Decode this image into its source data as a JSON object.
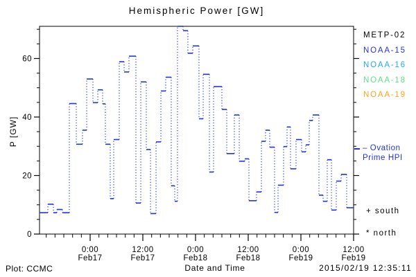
{
  "chart_data": {
    "type": "line",
    "subtype": "step-line",
    "title": "Hemispheric Power [GW]",
    "xlabel": "Date and Time",
    "ylabel": "P [GW]",
    "ylim": [
      0,
      71
    ],
    "grid": false,
    "y_major_ticks": [
      {
        "v": 0,
        "label": "0"
      },
      {
        "v": 20,
        "label": "20"
      },
      {
        "v": 40,
        "label": "40"
      },
      {
        "v": 60,
        "label": "60"
      }
    ],
    "y_minor_step": 5,
    "x_unit": "hours since 2015-02-16 00:00",
    "x_range_hours": [
      12.47,
      84
    ],
    "x_minor_step_hours": 2,
    "x_major_ticks": [
      {
        "h": 24,
        "line1": "0:00",
        "line2": "Feb17"
      },
      {
        "h": 36,
        "line1": "12:00",
        "line2": "Feb17"
      },
      {
        "h": 48,
        "line1": "0:00",
        "line2": "Feb18"
      },
      {
        "h": 60,
        "line1": "12:00",
        "line2": "Feb18"
      },
      {
        "h": 72,
        "line1": "0:00",
        "line2": "Feb19"
      },
      {
        "h": 84,
        "line1": "12:00",
        "line2": "Feb19"
      }
    ],
    "series": [
      {
        "name": "Ovation Prime HPI",
        "color": "#2233dd",
        "line_style": "solid horizontal steps with dotted vertical connectors",
        "segments_t0_t1_gw": [
          [
            12.47,
            14.37,
            7.3
          ],
          [
            14.37,
            15.63,
            10.2
          ],
          [
            15.63,
            16.42,
            7.3
          ],
          [
            16.42,
            17.68,
            8.4
          ],
          [
            17.68,
            19.26,
            7.3
          ],
          [
            19.26,
            20.84,
            44.6
          ],
          [
            20.84,
            22.26,
            30.7
          ],
          [
            22.26,
            23.21,
            35.5
          ],
          [
            23.21,
            24.63,
            53.0
          ],
          [
            24.63,
            25.74,
            44.9
          ],
          [
            25.74,
            26.84,
            49.3
          ],
          [
            26.84,
            27.47,
            44.5
          ],
          [
            27.47,
            28.58,
            30.7
          ],
          [
            28.58,
            29.37,
            12.1
          ],
          [
            29.37,
            30.63,
            32.3
          ],
          [
            30.63,
            31.74,
            58.9
          ],
          [
            31.74,
            32.84,
            55.4
          ],
          [
            32.84,
            34.42,
            60.8
          ],
          [
            34.42,
            35.53,
            10.6
          ],
          [
            35.53,
            36.79,
            52.0
          ],
          [
            36.79,
            37.74,
            28.9
          ],
          [
            37.74,
            39.0,
            7.0
          ],
          [
            39.0,
            40.11,
            31.5
          ],
          [
            40.11,
            41.21,
            48.9
          ],
          [
            41.21,
            42.47,
            53.6
          ],
          [
            42.47,
            43.26,
            16.5
          ],
          [
            43.26,
            43.89,
            11.2
          ],
          [
            43.89,
            45.16,
            71.0
          ],
          [
            45.16,
            46.26,
            69.5
          ],
          [
            46.26,
            47.37,
            61.8
          ],
          [
            47.37,
            48.79,
            64.3
          ],
          [
            48.79,
            49.74,
            39.4
          ],
          [
            49.74,
            51.16,
            54.6
          ],
          [
            51.16,
            52.11,
            21.2
          ],
          [
            52.11,
            54.0,
            50.4
          ],
          [
            54.0,
            55.11,
            42.6
          ],
          [
            55.11,
            56.84,
            27.5
          ],
          [
            56.84,
            57.95,
            40.7
          ],
          [
            57.95,
            59.21,
            24.9
          ],
          [
            59.21,
            60.16,
            25.7
          ],
          [
            60.16,
            61.89,
            11.4
          ],
          [
            61.89,
            63.0,
            14.4
          ],
          [
            63.0,
            63.95,
            31.7
          ],
          [
            63.95,
            64.89,
            35.5
          ],
          [
            64.89,
            66.0,
            29.7
          ],
          [
            66.0,
            66.79,
            7.4
          ],
          [
            66.79,
            68.05,
            16.7
          ],
          [
            68.05,
            68.84,
            29.9
          ],
          [
            68.84,
            69.63,
            36.6
          ],
          [
            69.63,
            70.89,
            22.3
          ],
          [
            70.89,
            72.16,
            32.3
          ],
          [
            72.16,
            73.11,
            28.1
          ],
          [
            73.11,
            73.89,
            30.5
          ],
          [
            73.89,
            74.68,
            38.8
          ],
          [
            74.68,
            76.11,
            40.7
          ],
          [
            76.11,
            77.05,
            13.3
          ],
          [
            77.05,
            78.0,
            11.2
          ],
          [
            78.0,
            78.95,
            25.4
          ],
          [
            78.95,
            80.05,
            8.2
          ],
          [
            80.05,
            81.16,
            18.1
          ],
          [
            81.16,
            82.42,
            20.4
          ],
          [
            82.42,
            84.0,
            9.0
          ]
        ]
      }
    ],
    "legend": [
      {
        "label": "METP-02",
        "color": "#000000"
      },
      {
        "label": "NOAA-15",
        "color": "#2233dd"
      },
      {
        "label": "NOAA-16",
        "color": "#22aaee"
      },
      {
        "label": "NOAA-18",
        "color": "#5ce08c"
      },
      {
        "label": "NOAA-19",
        "color": "#ffa41e"
      }
    ],
    "annotations": {
      "line_legend_line1": "– Ovation",
      "line_legend_line2": "Prime HPI",
      "south": "+ south",
      "north": "* north"
    },
    "axis_color": "#000000"
  },
  "footer": {
    "credit": "Plot: CCMC",
    "timestamp": "2015/02/19 12:35:11"
  }
}
